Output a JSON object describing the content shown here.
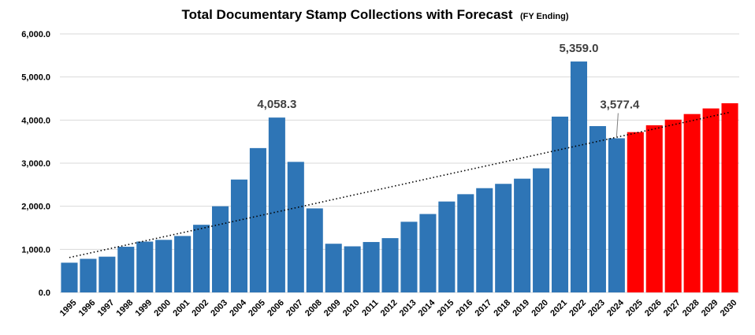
{
  "chart_data": {
    "type": "bar",
    "title": "Total Documentary Stamp Collections with Forecast",
    "subtitle": "(FY Ending)",
    "xlabel": "",
    "ylabel": "",
    "ylim": [
      0,
      6000
    ],
    "yticks": [
      "0.0",
      "1,000.0",
      "2,000.0",
      "3,000.0",
      "4,000.0",
      "5,000.0",
      "6,000.0"
    ],
    "grid": true,
    "categories": [
      "1995",
      "1996",
      "1997",
      "1998",
      "1999",
      "2000",
      "2001",
      "2002",
      "2003",
      "2004",
      "2005",
      "2006",
      "2007",
      "2008",
      "2009",
      "2010",
      "2011",
      "2012",
      "2013",
      "2014",
      "2015",
      "2016",
      "2017",
      "2018",
      "2019",
      "2020",
      "2021",
      "2022",
      "2023",
      "2024",
      "2025",
      "2026",
      "2027",
      "2028",
      "2029",
      "2030"
    ],
    "values": [
      690,
      780,
      830,
      1060,
      1180,
      1220,
      1310,
      1570,
      2000,
      2620,
      3350,
      4058.3,
      3030,
      1950,
      1130,
      1070,
      1170,
      1260,
      1640,
      1820,
      2110,
      2280,
      2420,
      2520,
      2640,
      2880,
      4080,
      5359.0,
      3860,
      3577.4,
      3720,
      3880,
      4010,
      4140,
      4270,
      4390
    ],
    "colors": {
      "actual": "#2e75b6",
      "forecast": "#ff0000"
    },
    "forecast_from_index": 30,
    "annotations": [
      {
        "index": 11,
        "label": "4,058.3"
      },
      {
        "index": 27,
        "label": "5,359.0"
      },
      {
        "index": 29,
        "label": "3,577.4"
      }
    ],
    "trendline": {
      "style": "dotted",
      "start_value": 810,
      "end_value": 4180
    }
  }
}
